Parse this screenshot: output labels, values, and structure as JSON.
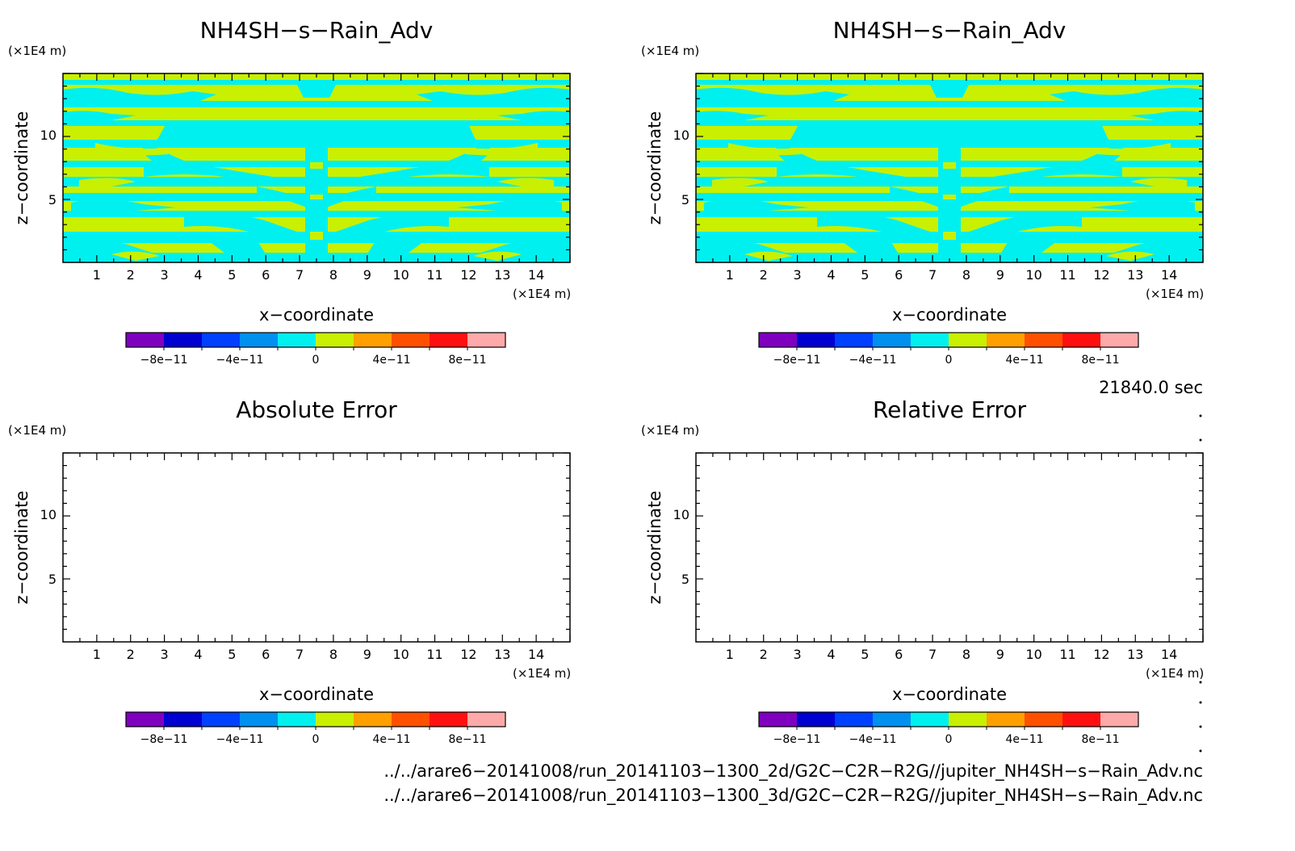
{
  "chart_data": [
    {
      "type": "heatmap",
      "title": "NH4SH−s−Rain_Adv",
      "xlabel": "x−coordinate",
      "ylabel": "z−coordinate",
      "x_unit": "(×1E4 m)",
      "y_unit": "(×1E4 m)",
      "xlim": [
        0,
        15
      ],
      "ylim": [
        0,
        15
      ],
      "x_ticks": [
        "1",
        "2",
        "3",
        "4",
        "5",
        "6",
        "7",
        "8",
        "9",
        "10",
        "11",
        "12",
        "13",
        "14"
      ],
      "y_ticks": [
        "5",
        "10"
      ],
      "field": "banded pattern of two colour levels (about 0 to 2e-11 and about -2e-11 to 0), mirror-symmetric about x = 7.5",
      "colorbar": {
        "levels": [
          "-1e-10",
          "-8e-11",
          "-6e-11",
          "-4e-11",
          "-2e-11",
          "0",
          "2e-11",
          "4e-11",
          "6e-11",
          "8e-11",
          "1e-10"
        ],
        "colors": [
          "#7f00bf",
          "#0000d0",
          "#0040ff",
          "#0090f0",
          "#00f0f0",
          "#c8f000",
          "#ffa000",
          "#ff5000",
          "#ff1010",
          "#ffaaaa"
        ],
        "tick_labels": [
          "−8e−11",
          "−4e−11",
          "0",
          "4e−11",
          "8e−11"
        ]
      }
    },
    {
      "type": "heatmap",
      "title": "NH4SH−s−Rain_Adv",
      "xlabel": "x−coordinate",
      "ylabel": "z−coordinate",
      "x_unit": "(×1E4 m)",
      "y_unit": "(×1E4 m)",
      "xlim": [
        0,
        15
      ],
      "ylim": [
        0,
        15
      ],
      "x_ticks": [
        "1",
        "2",
        "3",
        "4",
        "5",
        "6",
        "7",
        "8",
        "9",
        "10",
        "11",
        "12",
        "13",
        "14"
      ],
      "y_ticks": [
        "5",
        "10"
      ],
      "field": "identical to first panel",
      "colorbar": {
        "tick_labels": [
          "−8e−11",
          "−4e−11",
          "0",
          "4e−11",
          "8e−11"
        ]
      }
    },
    {
      "type": "heatmap",
      "title": "Absolute Error",
      "xlabel": "x−coordinate",
      "ylabel": "z−coordinate",
      "x_unit": "(×1E4 m)",
      "y_unit": "(×1E4 m)",
      "xlim": [
        0,
        15
      ],
      "ylim": [
        0,
        15
      ],
      "x_ticks": [
        "1",
        "2",
        "3",
        "4",
        "5",
        "6",
        "7",
        "8",
        "9",
        "10",
        "11",
        "12",
        "13",
        "14"
      ],
      "y_ticks": [
        "5",
        "10"
      ],
      "field": "empty",
      "colorbar": {
        "tick_labels": [
          "−8e−11",
          "−4e−11",
          "0",
          "4e−11",
          "8e−11"
        ]
      }
    },
    {
      "type": "heatmap",
      "title": "Relative Error",
      "xlabel": "x−coordinate",
      "ylabel": "z−coordinate",
      "x_unit": "(×1E4 m)",
      "y_unit": "(×1E4 m)",
      "xlim": [
        0,
        15
      ],
      "ylim": [
        0,
        15
      ],
      "x_ticks": [
        "1",
        "2",
        "3",
        "4",
        "5",
        "6",
        "7",
        "8",
        "9",
        "10",
        "11",
        "12",
        "13",
        "14"
      ],
      "y_ticks": [
        "5",
        "10"
      ],
      "field": "empty",
      "colorbar": {
        "tick_labels": [
          "−8e−11",
          "−4e−11",
          "0",
          "4e−11",
          "8e−11"
        ]
      }
    }
  ],
  "time_label": "21840.0 sec",
  "footer": {
    "line1": "../../arare6−20141008/run_20141103−1300_2d/G2C−C2R−R2G//jupiter_NH4SH−s−Rain_Adv.nc",
    "line2": "../../arare6−20141008/run_20141103−1300_3d/G2C−C2R−R2G//jupiter_NH4SH−s−Rain_Adv.nc"
  }
}
